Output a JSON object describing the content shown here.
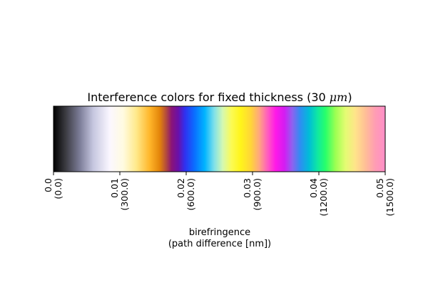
{
  "chart_data": {
    "type": "heatmap",
    "title_prefix": "Interference colors for fixed thickness (30 ",
    "title_math": "μm",
    "title_suffix": ")",
    "xlabel_line1": "birefringence",
    "xlabel_line2": "(path difference [nm])",
    "xlim": [
      0.0,
      0.05
    ],
    "ticks": [
      {
        "value": 0.0,
        "label": "0.0",
        "sublabel": "(0.0)"
      },
      {
        "value": 0.01,
        "label": "0.01",
        "sublabel": "(300.0)"
      },
      {
        "value": 0.02,
        "label": "0.02",
        "sublabel": "(600.0)"
      },
      {
        "value": 0.03,
        "label": "0.03",
        "sublabel": "(900.0)"
      },
      {
        "value": 0.04,
        "label": "0.04",
        "sublabel": "(1200.0)"
      },
      {
        "value": 0.05,
        "label": "0.05",
        "sublabel": "(1500.0)"
      }
    ],
    "colorbar_stops": [
      {
        "value": 0.0,
        "color": "#000000"
      },
      {
        "value": 0.0018,
        "color": "#3a3a40"
      },
      {
        "value": 0.004,
        "color": "#7d7e99"
      },
      {
        "value": 0.006,
        "color": "#c6c7e0"
      },
      {
        "value": 0.0085,
        "color": "#fbf7ff"
      },
      {
        "value": 0.0105,
        "color": "#fffbe0"
      },
      {
        "value": 0.0125,
        "color": "#ffe98a"
      },
      {
        "value": 0.0145,
        "color": "#ffb62a"
      },
      {
        "value": 0.016,
        "color": "#e4850a"
      },
      {
        "value": 0.017,
        "color": "#b34a3e"
      },
      {
        "value": 0.0178,
        "color": "#8a1478"
      },
      {
        "value": 0.0188,
        "color": "#6a10a8"
      },
      {
        "value": 0.0198,
        "color": "#3030f0"
      },
      {
        "value": 0.0212,
        "color": "#0b6cff"
      },
      {
        "value": 0.0228,
        "color": "#00b4ff"
      },
      {
        "value": 0.0242,
        "color": "#7ee0ea"
      },
      {
        "value": 0.0255,
        "color": "#d4f8b2"
      },
      {
        "value": 0.0268,
        "color": "#fbfb55"
      },
      {
        "value": 0.0282,
        "color": "#fff51a"
      },
      {
        "value": 0.0298,
        "color": "#ffd43a"
      },
      {
        "value": 0.031,
        "color": "#ffa77e"
      },
      {
        "value": 0.0322,
        "color": "#ff60bc"
      },
      {
        "value": 0.0335,
        "color": "#ff18e8"
      },
      {
        "value": 0.0348,
        "color": "#d41cf2"
      },
      {
        "value": 0.036,
        "color": "#8e62f0"
      },
      {
        "value": 0.0372,
        "color": "#2e8ef2"
      },
      {
        "value": 0.0385,
        "color": "#00bcd8"
      },
      {
        "value": 0.0398,
        "color": "#10e8a2"
      },
      {
        "value": 0.041,
        "color": "#28ff6a"
      },
      {
        "value": 0.0425,
        "color": "#9cff52"
      },
      {
        "value": 0.044,
        "color": "#e4fc72"
      },
      {
        "value": 0.0455,
        "color": "#ffe48a"
      },
      {
        "value": 0.047,
        "color": "#ffbf96"
      },
      {
        "value": 0.0485,
        "color": "#ff9cb4"
      },
      {
        "value": 0.05,
        "color": "#ff8ec8"
      }
    ]
  }
}
